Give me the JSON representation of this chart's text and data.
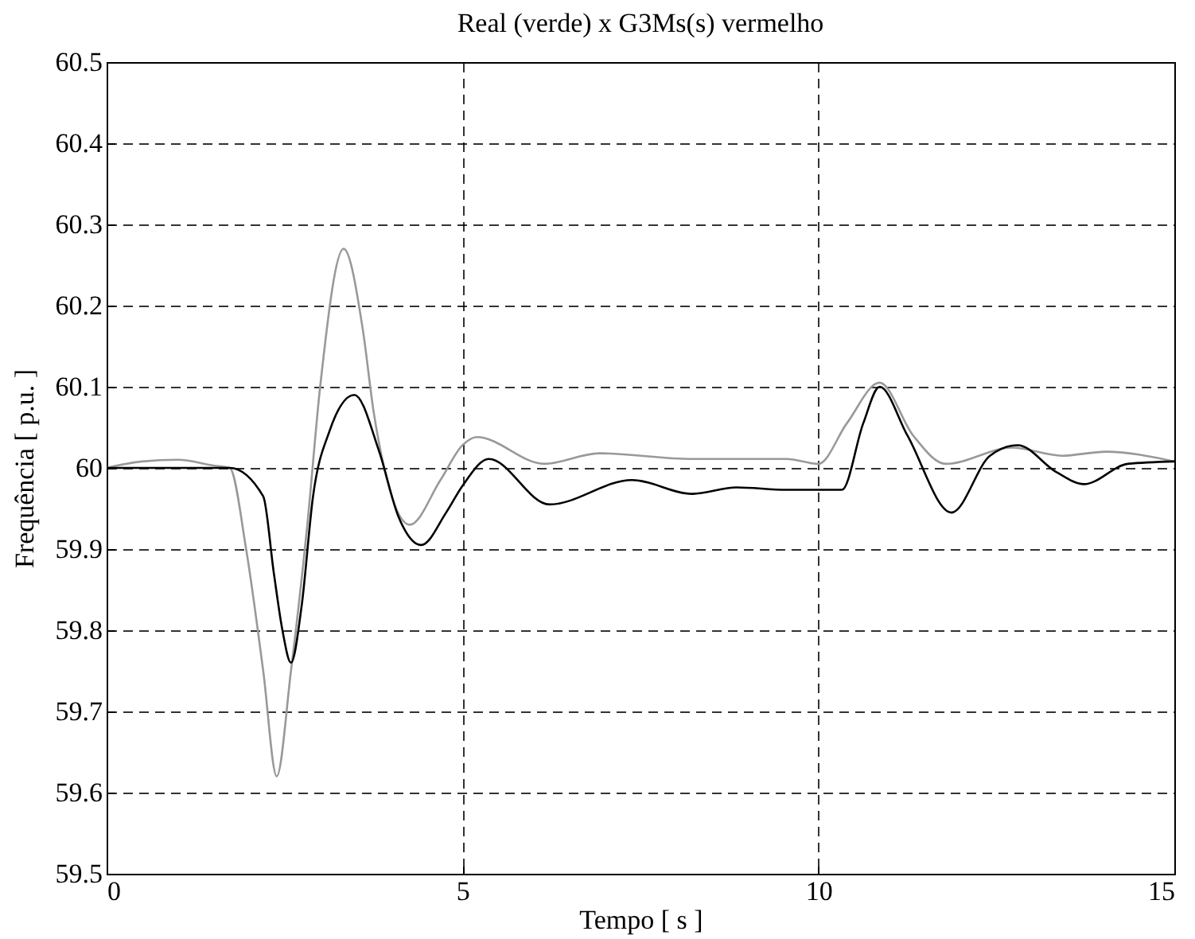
{
  "chart_data": {
    "type": "line",
    "title": "Real (verde) x G3Ms(s) vermelho",
    "xlabel": "Tempo [ s ]",
    "ylabel": "Frequência [ p.u. ]",
    "xlim": [
      0,
      15
    ],
    "xticks": [
      0,
      5,
      10,
      15
    ],
    "ylim": [
      59.5,
      60.5
    ],
    "yticks": [
      59.5,
      59.6,
      59.7,
      59.8,
      59.9,
      60,
      60.1,
      60.2,
      60.3,
      60.4,
      60.5
    ],
    "grid": true,
    "line_style": "solid",
    "series": [
      {
        "color": "#999999",
        "x": [
          0,
          0.5,
          1,
          1.5,
          1.73,
          1.96,
          2.2,
          2.39,
          2.59,
          2.82,
          3.0,
          3.33,
          3.6,
          3.75,
          3.9,
          4.26,
          4.69,
          5.0,
          5.2,
          6.15,
          6.92,
          8.23,
          9.55,
          10.0,
          10.4,
          10.86,
          11.33,
          11.79,
          12.72,
          13.42,
          14.04,
          15
        ],
        "values": [
          60,
          60.008,
          60.01,
          60.003,
          60,
          59.9,
          59.75,
          59.62,
          59.75,
          59.93,
          60.1,
          60.27,
          60.17,
          60.07,
          60,
          59.93,
          59.985,
          60.028,
          60.038,
          60.005,
          60.018,
          60.011,
          60.011,
          60.005,
          60.055,
          60.105,
          60.04,
          60.005,
          60.025,
          60.015,
          60.02,
          60.008
        ]
      },
      {
        "color": "#000000",
        "x": [
          0,
          1.73,
          2.2,
          2.35,
          2.47,
          2.59,
          2.74,
          2.9,
          3.13,
          3.48,
          3.83,
          4.1,
          4.42,
          4.77,
          5.0,
          5.37,
          6.22,
          7.38,
          8.23,
          8.85,
          9.55,
          10.33,
          10.63,
          10.86,
          11.25,
          11.87,
          12.41,
          12.8,
          13.34,
          13.73,
          14.35,
          15
        ],
        "values": [
          60,
          60,
          59.965,
          59.87,
          59.8,
          59.76,
          59.83,
          59.965,
          60.045,
          60.09,
          60.02,
          59.94,
          59.905,
          59.945,
          59.978,
          60.011,
          59.955,
          59.985,
          59.968,
          59.976,
          59.973,
          59.973,
          60.055,
          60.1,
          60.04,
          59.945,
          60.015,
          60.028,
          59.995,
          59.98,
          60.005,
          60.008
        ]
      }
    ]
  }
}
